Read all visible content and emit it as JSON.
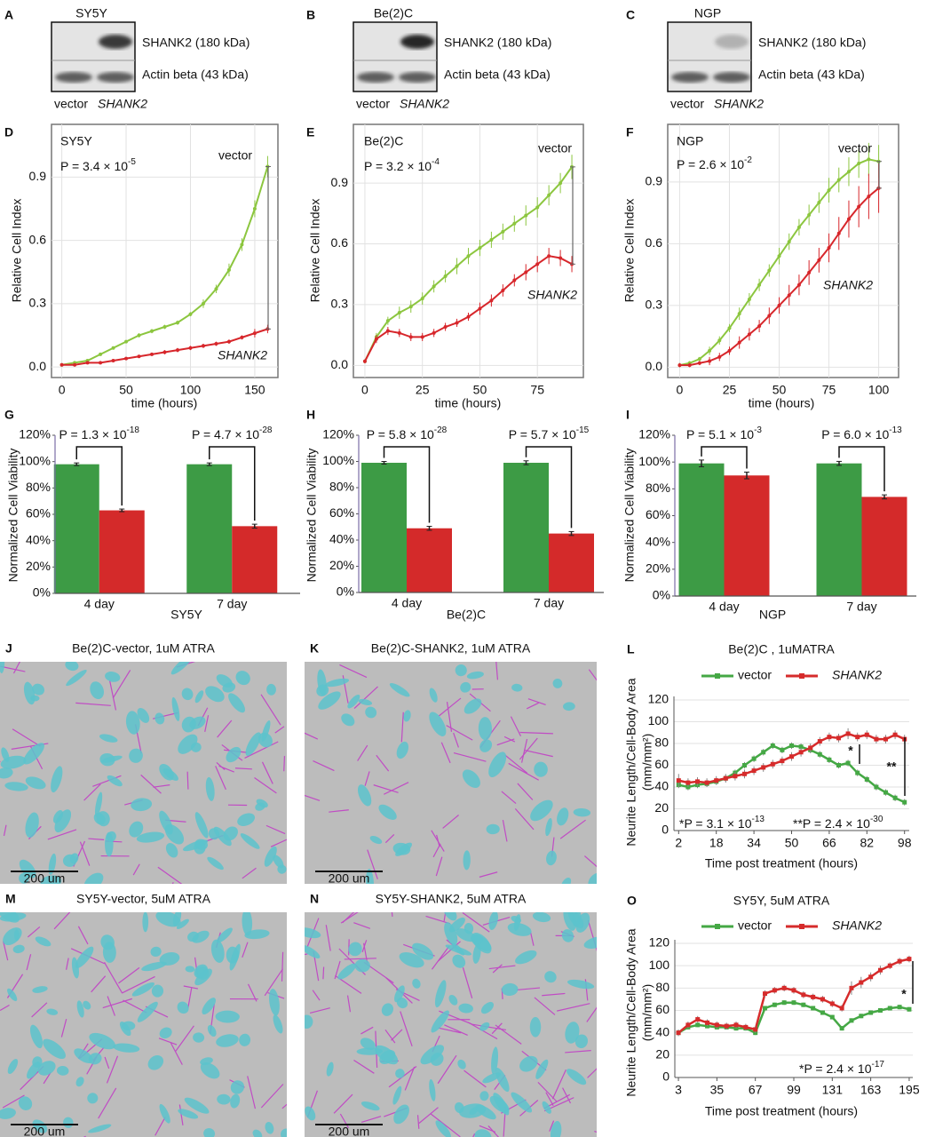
{
  "blots": [
    {
      "label": "A",
      "cell_line": "SY5Y",
      "bands": [
        "SHANK2 (180 kDa)",
        "Actin beta (43 kDa)"
      ],
      "lanes": [
        "vector",
        "SHANK2"
      ]
    },
    {
      "label": "B",
      "cell_line": "Be(2)C",
      "bands": [
        "SHANK2 (180 kDa)",
        "Actin beta (43 kDa)"
      ],
      "lanes": [
        "vector",
        "SHANK2"
      ]
    },
    {
      "label": "C",
      "cell_line": "NGP",
      "bands": [
        "SHANK2 (180 kDa)",
        "Actin beta (43 kDa)"
      ],
      "lanes": [
        "vector",
        "SHANK2"
      ]
    }
  ],
  "images": [
    {
      "label": "J",
      "title": "Be(2)C-vector, 1uM ATRA",
      "scale_bar": "200 um"
    },
    {
      "label": "K",
      "title": "Be(2)C-SHANK2, 1uM ATRA",
      "scale_bar": "200 um"
    },
    {
      "label": "M",
      "title": "SY5Y-vector, 5uM ATRA",
      "scale_bar": "200 um"
    },
    {
      "label": "N",
      "title": "SY5Y-SHANK2, 5uM ATRA",
      "scale_bar": "200 um"
    }
  ],
  "chart_data": [
    {
      "label": "D",
      "type": "line",
      "title": "SY5Y",
      "annotations": [
        {
          "text": "P = 3.4 × 10",
          "exponent": "-5"
        }
      ],
      "xlabel": "time (hours)",
      "ylabel": "Relative Cell Index",
      "x": [
        0,
        10,
        20,
        30,
        40,
        50,
        60,
        70,
        80,
        90,
        100,
        110,
        120,
        130,
        140,
        150,
        160
      ],
      "series": [
        {
          "name": "vector",
          "color": "#8cc63f",
          "values": [
            0.01,
            0.02,
            0.03,
            0.06,
            0.09,
            0.12,
            0.15,
            0.17,
            0.19,
            0.21,
            0.25,
            0.3,
            0.37,
            0.46,
            0.58,
            0.75,
            0.95
          ],
          "errors": [
            0,
            0,
            0,
            0,
            0,
            0,
            0.01,
            0.01,
            0.01,
            0.01,
            0.01,
            0.02,
            0.02,
            0.03,
            0.03,
            0.04,
            0.05
          ]
        },
        {
          "name": "SHANK2",
          "color": "#d7262b",
          "values": [
            0.01,
            0.01,
            0.02,
            0.02,
            0.03,
            0.04,
            0.05,
            0.06,
            0.07,
            0.08,
            0.09,
            0.1,
            0.11,
            0.12,
            0.14,
            0.16,
            0.18
          ],
          "errors": [
            0,
            0,
            0,
            0,
            0,
            0,
            0,
            0,
            0.01,
            0.01,
            0.01,
            0.01,
            0.01,
            0.01,
            0.01,
            0.02,
            0.02
          ]
        }
      ],
      "xlim": [
        -8,
        168
      ],
      "ylim": [
        -0.05,
        1.15
      ],
      "xticks": [
        0,
        50,
        100,
        150
      ],
      "yticks": [
        {
          "value": 0,
          "label": "0.0"
        },
        0.3,
        0.6,
        0.9
      ],
      "grid": "both"
    },
    {
      "label": "E",
      "type": "line",
      "title": "Be(2)C",
      "annotations": [
        {
          "text": "P = 3.2 × 10",
          "exponent": "-4"
        }
      ],
      "xlabel": "time (hours)",
      "ylabel": "Relative Cell Index",
      "x": [
        0,
        5,
        10,
        15,
        20,
        25,
        30,
        35,
        40,
        45,
        50,
        55,
        60,
        65,
        70,
        75,
        80,
        85,
        90
      ],
      "series": [
        {
          "name": "vector",
          "color": "#8cc63f",
          "values": [
            0.02,
            0.14,
            0.22,
            0.26,
            0.29,
            0.33,
            0.39,
            0.44,
            0.49,
            0.54,
            0.58,
            0.62,
            0.66,
            0.7,
            0.74,
            0.78,
            0.84,
            0.9,
            0.98
          ],
          "errors": [
            0.01,
            0.02,
            0.02,
            0.03,
            0.03,
            0.03,
            0.03,
            0.03,
            0.04,
            0.04,
            0.04,
            0.04,
            0.04,
            0.04,
            0.05,
            0.05,
            0.05,
            0.05,
            0.06
          ]
        },
        {
          "name": "SHANK2",
          "color": "#d7262b",
          "values": [
            0.02,
            0.13,
            0.17,
            0.16,
            0.14,
            0.14,
            0.16,
            0.19,
            0.21,
            0.24,
            0.28,
            0.32,
            0.37,
            0.42,
            0.46,
            0.5,
            0.54,
            0.53,
            0.5
          ],
          "errors": [
            0.01,
            0.02,
            0.02,
            0.02,
            0.02,
            0.02,
            0.02,
            0.02,
            0.02,
            0.02,
            0.03,
            0.03,
            0.03,
            0.03,
            0.04,
            0.04,
            0.04,
            0.04,
            0.04
          ]
        }
      ],
      "xlim": [
        -5,
        95
      ],
      "ylim": [
        -0.06,
        1.19
      ],
      "xticks": [
        0,
        25,
        50,
        75
      ],
      "yticks": [
        {
          "value": 0,
          "label": "0.0"
        },
        0.3,
        0.6,
        0.9
      ],
      "grid": "both"
    },
    {
      "label": "F",
      "type": "line",
      "title": "NGP",
      "annotations": [
        {
          "text": "P = 2.6 × 10",
          "exponent": "-2"
        }
      ],
      "xlabel": "time (hours)",
      "ylabel": "Relative Cell Index",
      "x": [
        0,
        5,
        10,
        15,
        20,
        25,
        30,
        35,
        40,
        45,
        50,
        55,
        60,
        65,
        70,
        75,
        80,
        85,
        90,
        95,
        100
      ],
      "series": [
        {
          "name": "vector",
          "color": "#8cc63f",
          "values": [
            0.01,
            0.02,
            0.04,
            0.08,
            0.13,
            0.19,
            0.26,
            0.33,
            0.4,
            0.47,
            0.54,
            0.61,
            0.68,
            0.74,
            0.8,
            0.86,
            0.91,
            0.95,
            0.99,
            1.01,
            1.0
          ],
          "errors": [
            0.01,
            0.01,
            0.01,
            0.02,
            0.02,
            0.02,
            0.03,
            0.03,
            0.03,
            0.03,
            0.04,
            0.04,
            0.04,
            0.05,
            0.05,
            0.06,
            0.06,
            0.07,
            0.07,
            0.08,
            0.08
          ]
        },
        {
          "name": "SHANK2",
          "color": "#d7262b",
          "values": [
            0.01,
            0.01,
            0.02,
            0.03,
            0.05,
            0.08,
            0.12,
            0.16,
            0.2,
            0.25,
            0.3,
            0.35,
            0.4,
            0.46,
            0.52,
            0.58,
            0.65,
            0.72,
            0.78,
            0.83,
            0.87
          ],
          "errors": [
            0.01,
            0.01,
            0.01,
            0.02,
            0.02,
            0.02,
            0.03,
            0.03,
            0.03,
            0.04,
            0.04,
            0.05,
            0.05,
            0.06,
            0.06,
            0.07,
            0.08,
            0.09,
            0.1,
            0.11,
            0.12
          ]
        }
      ],
      "xlim": [
        -6,
        110
      ],
      "ylim": [
        -0.05,
        1.18
      ],
      "xticks": [
        0,
        25,
        50,
        75,
        100
      ],
      "yticks": [
        {
          "value": 0,
          "label": "0.0"
        },
        0.3,
        0.6,
        0.9
      ],
      "grid": "both"
    },
    {
      "label": "G",
      "type": "bar",
      "xlabel": "SY5Y",
      "ylabel": "Normalized Cell Viability",
      "categories": [
        "4 day",
        "7 day"
      ],
      "annotations": [
        {
          "text": "P = 1.3 × 10",
          "exponent": "-18"
        },
        {
          "text": "P = 4.7 × 10",
          "exponent": "-28"
        }
      ],
      "series": [
        {
          "color": "#3d9b45",
          "values": [
            98,
            98
          ],
          "errors": [
            1,
            1
          ]
        },
        {
          "color": "#d42a2a",
          "values": [
            63,
            51
          ],
          "errors": [
            1,
            1.5
          ]
        }
      ],
      "ylim": [
        0,
        120
      ],
      "yticks": [
        {
          "value": 0,
          "label": "0%"
        },
        {
          "value": 20,
          "label": "20%"
        },
        {
          "value": 40,
          "label": "40%"
        },
        {
          "value": 60,
          "label": "60%"
        },
        {
          "value": 80,
          "label": "80%"
        },
        {
          "value": 100,
          "label": "100%"
        },
        {
          "value": 120,
          "label": "120%"
        }
      ]
    },
    {
      "label": "H",
      "type": "bar",
      "xlabel": "Be(2)C",
      "ylabel": "Normalized Cell Viability",
      "categories": [
        "4 day",
        "7 day"
      ],
      "annotations": [
        {
          "text": "P = 5.8 × 10",
          "exponent": "-28"
        },
        {
          "text": "P = 5.7 × 10",
          "exponent": "-15"
        }
      ],
      "series": [
        {
          "color": "#3d9b45",
          "values": [
            99,
            99
          ],
          "errors": [
            1,
            1.5
          ]
        },
        {
          "color": "#d42a2a",
          "values": [
            49,
            45
          ],
          "errors": [
            1.5,
            1.5
          ]
        }
      ],
      "ylim": [
        0,
        120
      ],
      "yticks": [
        {
          "value": 0,
          "label": "0%"
        },
        {
          "value": 20,
          "label": "20%"
        },
        {
          "value": 40,
          "label": "40%"
        },
        {
          "value": 60,
          "label": "60%"
        },
        {
          "value": 80,
          "label": "80%"
        },
        {
          "value": 100,
          "label": "100%"
        },
        {
          "value": 120,
          "label": "120%"
        }
      ]
    },
    {
      "label": "I",
      "type": "bar",
      "xlabel": "NGP",
      "ylabel": "Normalized Cell Viability",
      "categories": [
        "4 day",
        "7 day"
      ],
      "annotations": [
        {
          "text": "P = 5.1 × 10",
          "exponent": "-3"
        },
        {
          "text": "P = 6.0 × 10",
          "exponent": "-13"
        }
      ],
      "series": [
        {
          "color": "#3d9b45",
          "values": [
            99,
            99
          ],
          "errors": [
            2.5,
            1.5
          ]
        },
        {
          "color": "#d42a2a",
          "values": [
            90,
            74
          ],
          "errors": [
            2.5,
            1.5
          ]
        }
      ],
      "ylim": [
        0,
        120
      ],
      "yticks": [
        {
          "value": 0,
          "label": "0%"
        },
        {
          "value": 20,
          "label": "20%"
        },
        {
          "value": 40,
          "label": "40%"
        },
        {
          "value": 60,
          "label": "60%"
        },
        {
          "value": 80,
          "label": "80%"
        },
        {
          "value": 100,
          "label": "100%"
        },
        {
          "value": 120,
          "label": "120%"
        }
      ]
    },
    {
      "label": "L",
      "type": "line",
      "title": "Be(2)C , 1uMATRA",
      "legend": "top",
      "ylabel": "Neurite Length/Cell-Body Area",
      "yunit": "(mm/mm²)",
      "xlabel": "Time post treatment (hours)",
      "annotations": [
        {
          "text": "*P = 3.1 × 10",
          "exponent": "-13"
        },
        {
          "text": "**P = 2.4 × 10",
          "exponent": "-30"
        }
      ],
      "significance": [
        "*",
        "**"
      ],
      "x": [
        2,
        6,
        10,
        14,
        18,
        22,
        26,
        30,
        34,
        38,
        42,
        46,
        50,
        54,
        58,
        62,
        66,
        70,
        74,
        78,
        82,
        86,
        90,
        94,
        98
      ],
      "series": [
        {
          "name": "vector",
          "color": "#45a845",
          "values": [
            42,
            40,
            42,
            43,
            45,
            48,
            53,
            60,
            66,
            72,
            78,
            74,
            78,
            77,
            74,
            70,
            65,
            60,
            62,
            53,
            47,
            40,
            35,
            30,
            26
          ],
          "errors": [
            3,
            3,
            3,
            3,
            3,
            3,
            3,
            3,
            3,
            3,
            3,
            3,
            3,
            3,
            3,
            3,
            3,
            3,
            3,
            3,
            3,
            3,
            3,
            3,
            3
          ]
        },
        {
          "name": "SHANK2",
          "color": "#d62b2b",
          "values": [
            46,
            44,
            45,
            44,
            46,
            48,
            50,
            52,
            55,
            58,
            61,
            64,
            68,
            72,
            76,
            82,
            86,
            85,
            89,
            86,
            88,
            84,
            84,
            88,
            84
          ],
          "errors": [
            6,
            4,
            4,
            4,
            4,
            4,
            4,
            4,
            4,
            4,
            4,
            4,
            4,
            4,
            4,
            4,
            4,
            4,
            5,
            4,
            4,
            4,
            4,
            4,
            4
          ]
        }
      ],
      "xlim": [
        0,
        100
      ],
      "ylim": [
        0,
        120
      ],
      "xticks": [
        2,
        18,
        34,
        50,
        66,
        82,
        98
      ],
      "yticks": [
        0,
        20,
        40,
        60,
        80,
        100,
        120
      ],
      "grid": "y"
    },
    {
      "label": "O",
      "type": "line",
      "title": "SY5Y, 5uM ATRA",
      "legend": "top",
      "ylabel": "Neurite Length/Cell-Body Area",
      "yunit": "(mm/mm²)",
      "xlabel": "Time post treatment (hours)",
      "annotations": [
        {
          "text": "*P = 2.4 × 10",
          "exponent": "-17"
        }
      ],
      "significance": [
        "*"
      ],
      "x": [
        3,
        11,
        19,
        27,
        35,
        43,
        51,
        59,
        67,
        75,
        83,
        91,
        99,
        107,
        115,
        123,
        131,
        139,
        147,
        155,
        163,
        171,
        179,
        187,
        195
      ],
      "series": [
        {
          "name": "vector",
          "color": "#45a845",
          "values": [
            40,
            45,
            47,
            46,
            45,
            45,
            44,
            44,
            40,
            62,
            65,
            67,
            67,
            65,
            62,
            58,
            54,
            44,
            51,
            55,
            58,
            60,
            62,
            63,
            61
          ],
          "errors": [
            2,
            2,
            2,
            2,
            2,
            2,
            2,
            2,
            2,
            2,
            2,
            2,
            2,
            2,
            2,
            2,
            2,
            2,
            2,
            2,
            2,
            2,
            2,
            2,
            2
          ]
        },
        {
          "name": "SHANK2",
          "color": "#d62b2b",
          "values": [
            40,
            47,
            52,
            49,
            47,
            46,
            47,
            45,
            43,
            75,
            78,
            80,
            78,
            74,
            72,
            70,
            66,
            62,
            80,
            85,
            90,
            96,
            100,
            104,
            106
          ],
          "errors": [
            3,
            3,
            3,
            3,
            3,
            3,
            3,
            3,
            3,
            3,
            3,
            3,
            3,
            3,
            3,
            3,
            3,
            3,
            6,
            5,
            4,
            4,
            3,
            3,
            3
          ]
        }
      ],
      "xlim": [
        0,
        198
      ],
      "ylim": [
        0,
        120
      ],
      "xticks": [
        3,
        35,
        67,
        99,
        131,
        163,
        195
      ],
      "yticks": [
        0,
        20,
        40,
        60,
        80,
        100,
        120
      ],
      "grid": "y"
    }
  ]
}
